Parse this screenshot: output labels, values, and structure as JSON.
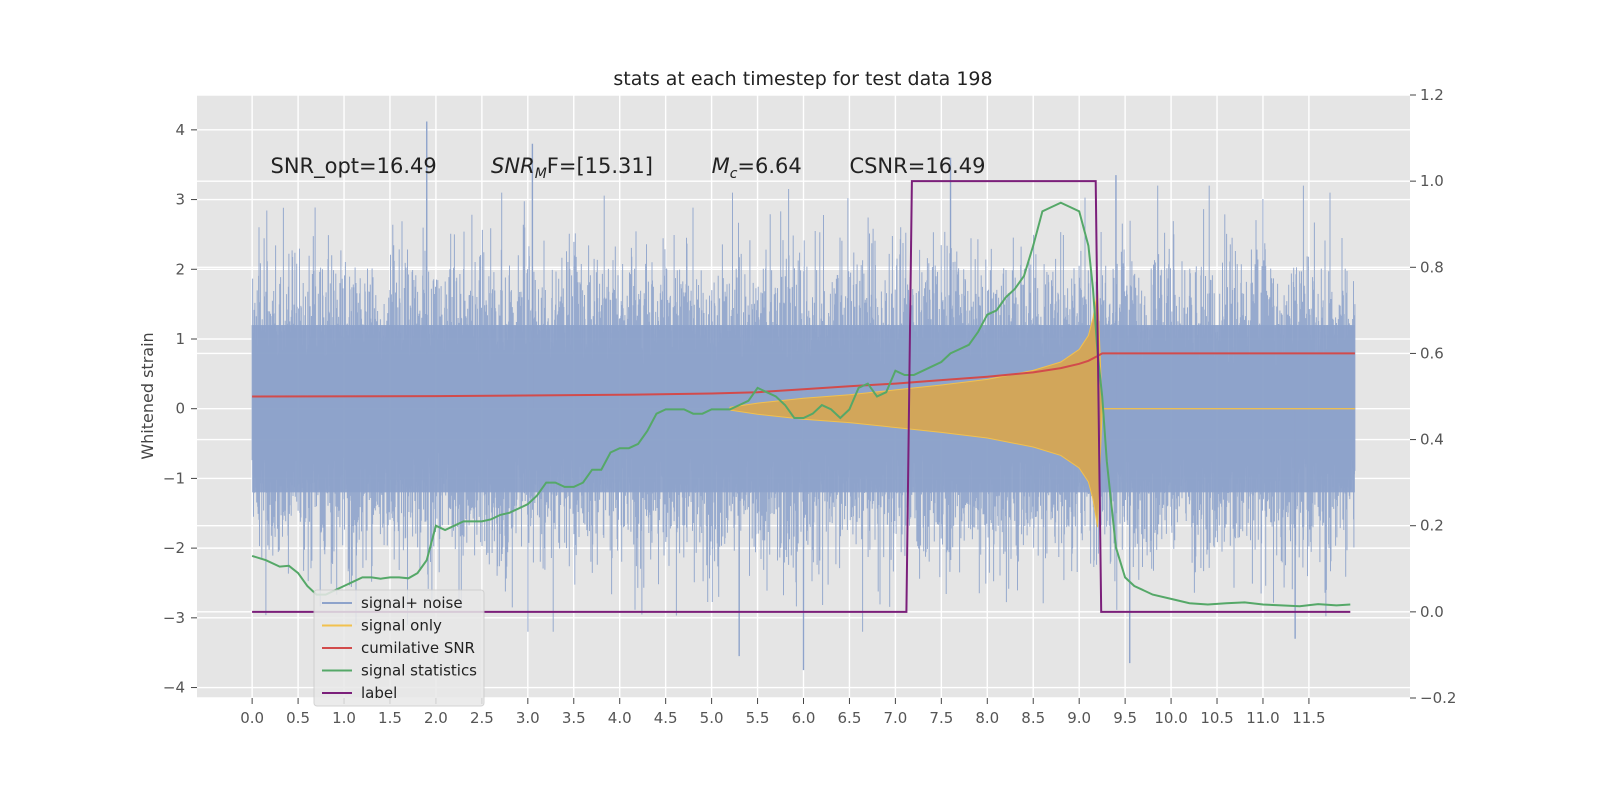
{
  "chart_data": {
    "type": "line",
    "title": "stats at each timestep for test data 198",
    "xlabel": "",
    "ylabel": "Whitened strain",
    "y2label": "",
    "xlim": [
      -0.6,
      12.6
    ],
    "ylim": [
      -4.15,
      4.5
    ],
    "y2lim": [
      -0.2,
      1.2
    ],
    "x_ticks": [
      0.0,
      0.5,
      1.0,
      1.5,
      2.0,
      2.5,
      3.0,
      3.5,
      4.0,
      4.5,
      5.0,
      5.5,
      6.0,
      6.5,
      7.0,
      7.5,
      8.0,
      8.5,
      9.0,
      9.5,
      10.0,
      10.5,
      11.0,
      11.5
    ],
    "x_tick_labels": [
      "0.0",
      "0.5",
      "1.0",
      "1.5",
      "2.0",
      "2.5",
      "3.0",
      "3.5",
      "4.0",
      "4.5",
      "5.0",
      "5.5",
      "6.0",
      "6.5",
      "7.0",
      "7.5",
      "8.0",
      "8.5",
      "9.0",
      "9.5",
      "10.0",
      "10.5",
      "11.0",
      "11.5"
    ],
    "y_ticks": [
      4,
      3,
      2,
      1,
      0,
      -1,
      -2,
      -3,
      -4
    ],
    "y_tick_labels": [
      "4",
      "3",
      "2",
      "1",
      "0",
      "−1",
      "−2",
      "−3",
      "−4"
    ],
    "y2_ticks": [
      1.2,
      1.0,
      0.8,
      0.6,
      0.4,
      0.2,
      0.0,
      -0.2
    ],
    "y2_tick_labels": [
      "1.2",
      "1.0",
      "0.8",
      "0.6",
      "0.4",
      "0.2",
      "0.0",
      "−0.2"
    ],
    "grid": true,
    "legend_position": "lower-left",
    "annotations": [
      {
        "text": "SNR_opt=16.49",
        "x": 0.2,
        "y": 3.38
      },
      {
        "text_main": "SNR",
        "text_sub": "M",
        "text_rest": "F=[15.31]",
        "x": 2.6,
        "y": 3.38
      },
      {
        "text_main": "M",
        "text_sub": "c",
        "text_rest": "=6.64",
        "x": 5.0,
        "y": 3.38
      },
      {
        "text": "CSNR=16.49",
        "x": 6.5,
        "y": 3.38
      }
    ],
    "series": [
      {
        "name": "signal+ noise",
        "color": "#8ea3cb",
        "axis": "left",
        "kind": "noise",
        "x_range": [
          0.0,
          12.0
        ],
        "envelope_core": 1.2,
        "peak_values": [
          {
            "x": 1.9,
            "y": 4.12
          },
          {
            "x": 3.05,
            "y": 3.8
          },
          {
            "x": 7.6,
            "y": 3.6
          },
          {
            "x": 9.4,
            "y": 3.35
          },
          {
            "x": 6.0,
            "y": -3.75
          },
          {
            "x": 5.3,
            "y": -3.55
          },
          {
            "x": 9.55,
            "y": -3.65
          },
          {
            "x": 11.35,
            "y": -3.3
          }
        ]
      },
      {
        "name": "signal only",
        "color": "#f2c14e",
        "axis": "left",
        "kind": "chirp",
        "x": [
          5.2,
          5.5,
          6.0,
          6.5,
          7.0,
          7.5,
          8.0,
          8.5,
          8.8,
          9.0,
          9.1,
          9.15,
          9.2,
          9.25,
          12.0
        ],
        "amplitude": [
          0.02,
          0.08,
          0.15,
          0.2,
          0.27,
          0.34,
          0.42,
          0.55,
          0.67,
          0.85,
          1.05,
          1.3,
          1.7,
          0.0,
          0.0
        ]
      },
      {
        "name": "cumilative SNR",
        "color": "#d24b4b",
        "axis": "right",
        "x": [
          0.0,
          2.0,
          4.0,
          5.0,
          5.5,
          6.0,
          6.5,
          7.0,
          7.5,
          8.0,
          8.5,
          8.8,
          9.0,
          9.1,
          9.2,
          9.25,
          12.0
        ],
        "values": [
          0.5,
          0.501,
          0.504,
          0.507,
          0.51,
          0.517,
          0.524,
          0.53,
          0.538,
          0.546,
          0.556,
          0.566,
          0.576,
          0.583,
          0.594,
          0.6,
          0.6
        ]
      },
      {
        "name": "signal statistics",
        "color": "#55a868",
        "axis": "right",
        "x": [
          0.0,
          0.15,
          0.3,
          0.4,
          0.5,
          0.6,
          0.7,
          0.8,
          0.9,
          1.0,
          1.1,
          1.2,
          1.3,
          1.4,
          1.5,
          1.6,
          1.7,
          1.8,
          1.9,
          2.0,
          2.1,
          2.2,
          2.3,
          2.4,
          2.5,
          2.6,
          2.7,
          2.8,
          2.9,
          3.0,
          3.1,
          3.2,
          3.3,
          3.4,
          3.5,
          3.6,
          3.7,
          3.8,
          3.9,
          4.0,
          4.1,
          4.2,
          4.3,
          4.4,
          4.5,
          4.6,
          4.7,
          4.8,
          4.9,
          5.0,
          5.1,
          5.2,
          5.3,
          5.4,
          5.5,
          5.6,
          5.7,
          5.8,
          5.9,
          6.0,
          6.1,
          6.2,
          6.3,
          6.4,
          6.5,
          6.6,
          6.7,
          6.8,
          6.9,
          7.0,
          7.1,
          7.2,
          7.3,
          7.4,
          7.5,
          7.6,
          7.7,
          7.8,
          7.9,
          8.0,
          8.1,
          8.2,
          8.3,
          8.4,
          8.5,
          8.6,
          8.7,
          8.8,
          8.9,
          9.0,
          9.1,
          9.15,
          9.2,
          9.25,
          9.3,
          9.4,
          9.5,
          9.6,
          9.8,
          10.0,
          10.2,
          10.4,
          10.6,
          10.8,
          11.0,
          11.2,
          11.4,
          11.6,
          11.8,
          11.95
        ],
        "values": [
          0.13,
          0.12,
          0.105,
          0.107,
          0.09,
          0.06,
          0.04,
          0.04,
          0.05,
          0.06,
          0.07,
          0.08,
          0.08,
          0.077,
          0.08,
          0.08,
          0.078,
          0.09,
          0.12,
          0.2,
          0.19,
          0.2,
          0.21,
          0.21,
          0.21,
          0.215,
          0.225,
          0.23,
          0.24,
          0.25,
          0.27,
          0.3,
          0.3,
          0.29,
          0.29,
          0.3,
          0.33,
          0.33,
          0.37,
          0.38,
          0.38,
          0.39,
          0.42,
          0.46,
          0.47,
          0.47,
          0.47,
          0.46,
          0.46,
          0.47,
          0.47,
          0.47,
          0.48,
          0.49,
          0.52,
          0.51,
          0.5,
          0.48,
          0.45,
          0.45,
          0.46,
          0.48,
          0.47,
          0.45,
          0.47,
          0.52,
          0.53,
          0.5,
          0.51,
          0.56,
          0.55,
          0.55,
          0.56,
          0.57,
          0.58,
          0.6,
          0.61,
          0.62,
          0.65,
          0.69,
          0.7,
          0.73,
          0.75,
          0.78,
          0.85,
          0.93,
          0.94,
          0.95,
          0.94,
          0.93,
          0.85,
          0.75,
          0.6,
          0.5,
          0.35,
          0.15,
          0.08,
          0.06,
          0.04,
          0.03,
          0.02,
          0.017,
          0.02,
          0.022,
          0.017,
          0.015,
          0.013,
          0.018,
          0.015,
          0.017
        ]
      },
      {
        "name": "label",
        "color": "#7b1f7a",
        "axis": "right",
        "x": [
          0.0,
          7.12,
          7.18,
          9.18,
          9.24,
          11.95
        ],
        "values": [
          0.0,
          0.0,
          1.0,
          1.0,
          0.0,
          0.0
        ]
      }
    ]
  }
}
